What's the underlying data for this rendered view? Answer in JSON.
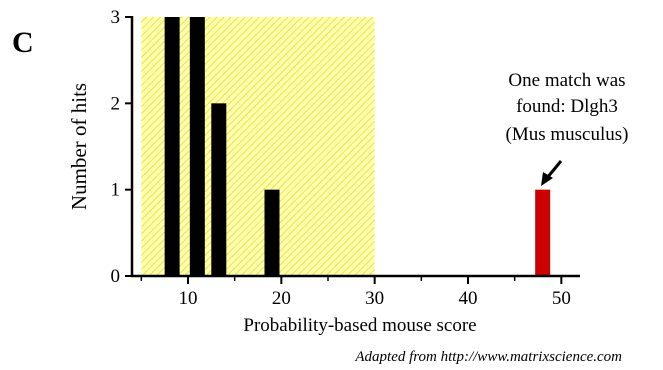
{
  "panel_label": "C",
  "chart_data": {
    "type": "bar",
    "title": "",
    "xlabel": "Probability-based mouse score",
    "ylabel": "Number of hits",
    "xlim": [
      4,
      52
    ],
    "ylim": [
      0,
      3
    ],
    "x_ticks": [
      10,
      20,
      30,
      40,
      50
    ],
    "y_ticks": [
      0,
      1,
      2,
      3
    ],
    "shaded_region": {
      "x_range": [
        5,
        30
      ],
      "color": "#ffff99",
      "pattern": "diagonal-hatch"
    },
    "bars": [
      {
        "x": 8.3,
        "value": 3,
        "color": "#000000"
      },
      {
        "x": 11,
        "value": 3,
        "color": "#000000"
      },
      {
        "x": 13.3,
        "value": 2,
        "color": "#000000"
      },
      {
        "x": 19,
        "value": 1,
        "color": "#000000"
      },
      {
        "x": 48,
        "value": 1,
        "color": "#cc0000"
      }
    ],
    "annotation": {
      "lines": [
        "One match was",
        "found: Dlgh3",
        "(Mus musculus)"
      ],
      "points_to_bar": 4
    },
    "grid": false,
    "legend": "none"
  },
  "credit": "Adapted from http://www.matrixscience.com"
}
